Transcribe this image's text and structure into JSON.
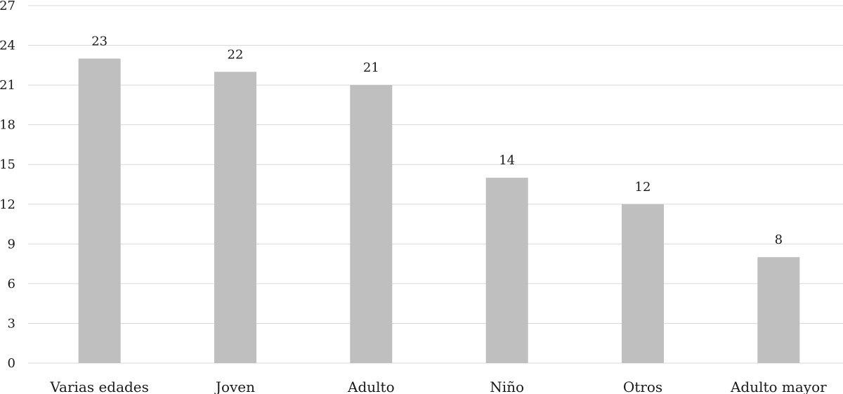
{
  "chart_data": {
    "type": "bar",
    "title": "",
    "xlabel": "",
    "ylabel": "",
    "categories": [
      "Varias edades",
      "Joven",
      "Adulto",
      "Niño",
      "Otros",
      "Adulto mayor"
    ],
    "values": [
      23,
      22,
      21,
      14,
      12,
      8
    ],
    "data_labels": [
      "23",
      "22",
      "21",
      "14",
      "12",
      "8"
    ],
    "y_ticks": [
      "0",
      "3",
      "6",
      "9",
      "12",
      "15",
      "18",
      "21",
      "24",
      "27"
    ],
    "ylim": [
      0,
      27
    ],
    "grid": true,
    "legend": "none",
    "bar_color": "#bfbfbf",
    "grid_color": "#d9d9d9"
  }
}
